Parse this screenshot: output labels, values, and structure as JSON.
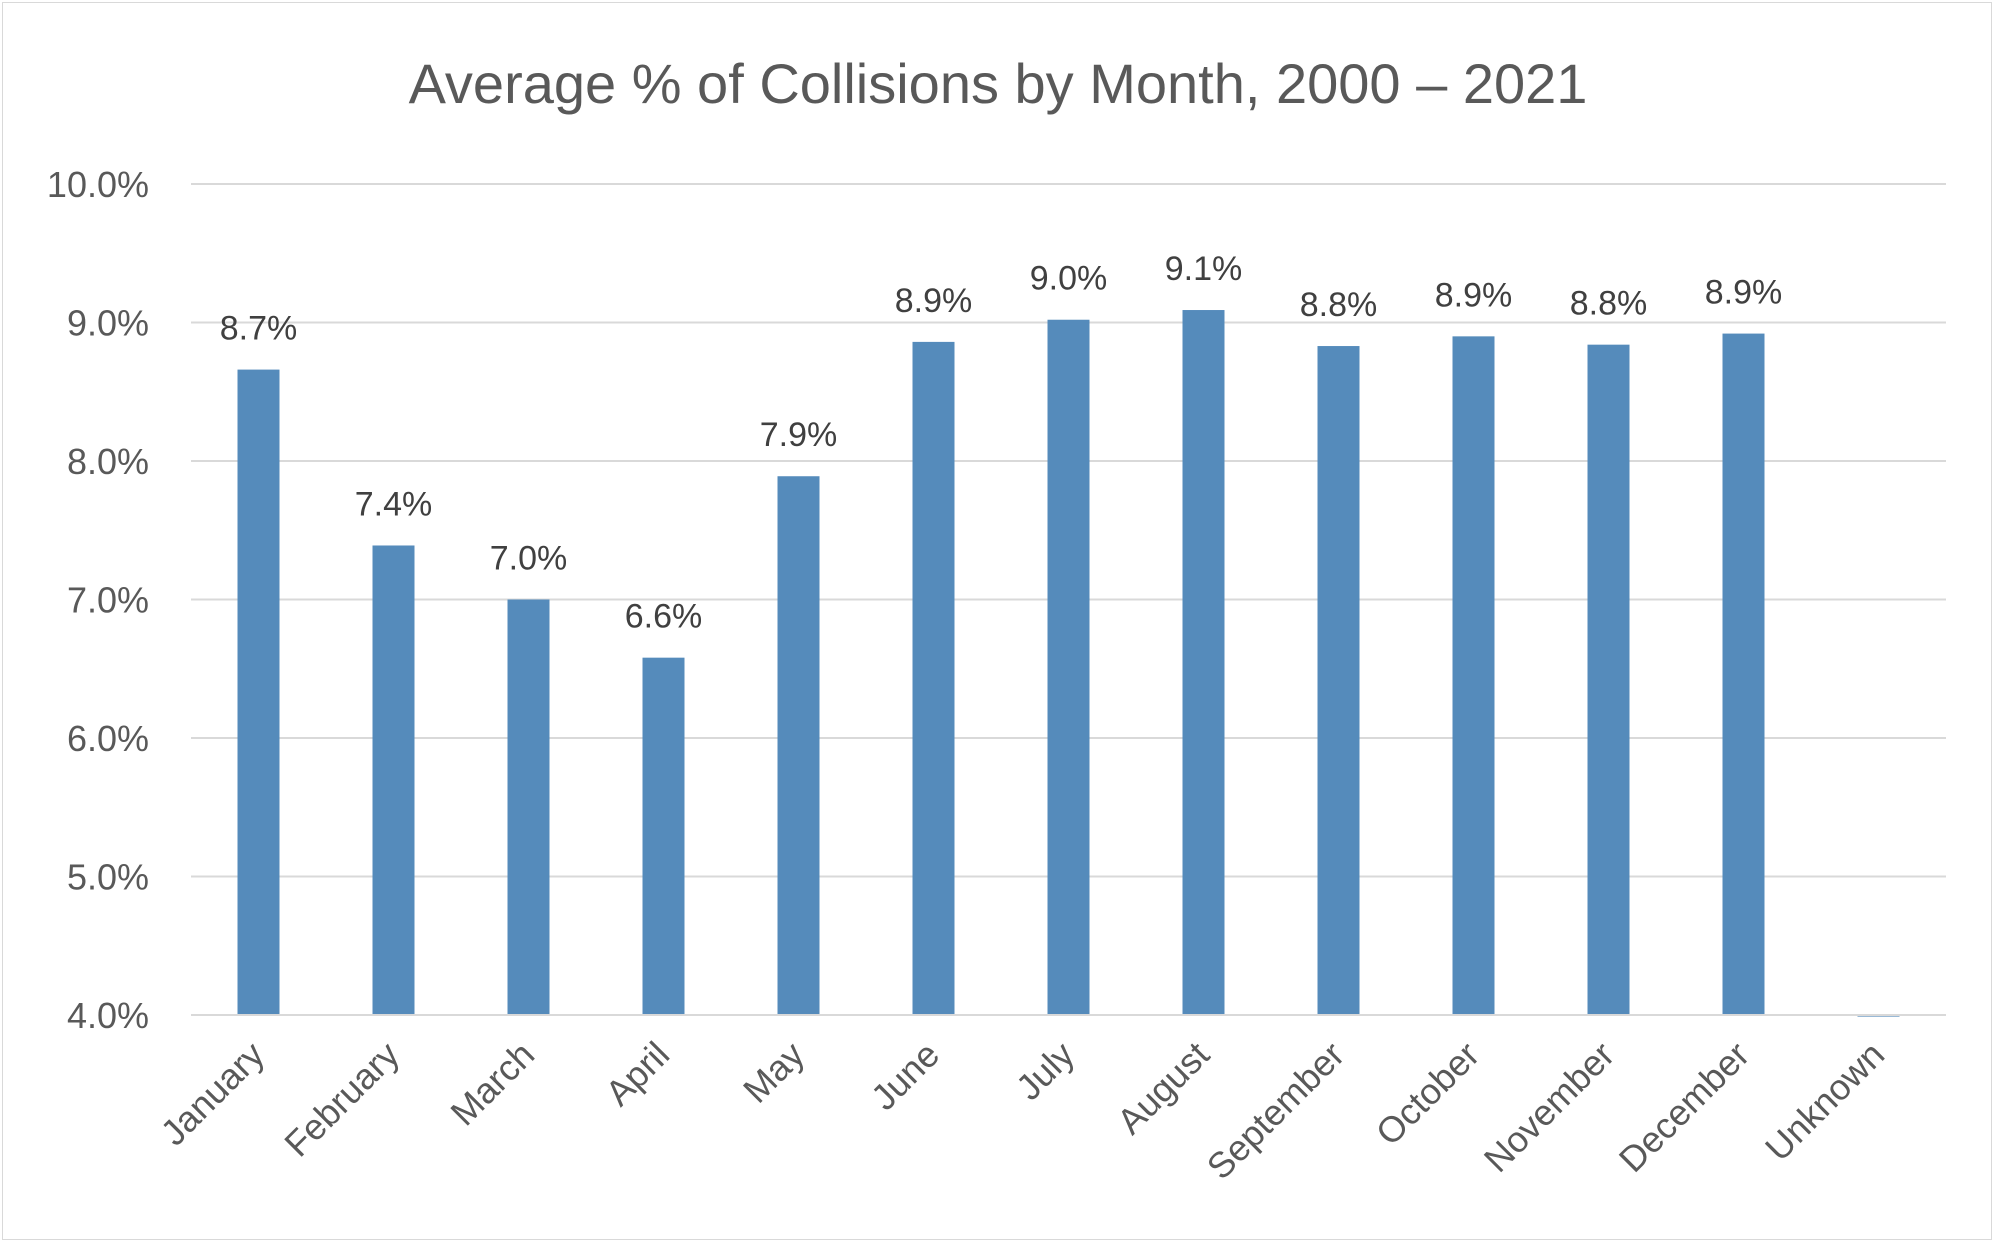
{
  "chart_data": {
    "type": "bar",
    "title": "Average % of Collisions by Month, 2000 – 2021",
    "xlabel": "",
    "ylabel": "",
    "categories": [
      "January",
      "February",
      "March",
      "April",
      "May",
      "June",
      "July",
      "August",
      "September",
      "October",
      "November",
      "December",
      "Unknown"
    ],
    "values": [
      8.66,
      7.39,
      7.0,
      6.58,
      7.89,
      8.86,
      9.02,
      9.09,
      8.83,
      8.9,
      8.84,
      8.92,
      3.99
    ],
    "data_labels": [
      "8.7%",
      "7.4%",
      "7.0%",
      "6.6%",
      "7.9%",
      "8.9%",
      "9.0%",
      "9.1%",
      "8.8%",
      "8.9%",
      "8.8%",
      "8.9%",
      ""
    ],
    "ylim": [
      4.0,
      10.0
    ],
    "yticks": [
      4.0,
      5.0,
      6.0,
      7.0,
      8.0,
      9.0,
      10.0
    ],
    "ytick_labels": [
      "4.0%",
      "5.0%",
      "6.0%",
      "7.0%",
      "8.0%",
      "9.0%",
      "10.0%"
    ],
    "grid": true,
    "legend": "none",
    "colors": {
      "bar": "#558bbb",
      "grid": "#d9d9d9",
      "text": "#595959",
      "data_label": "#404040"
    }
  }
}
